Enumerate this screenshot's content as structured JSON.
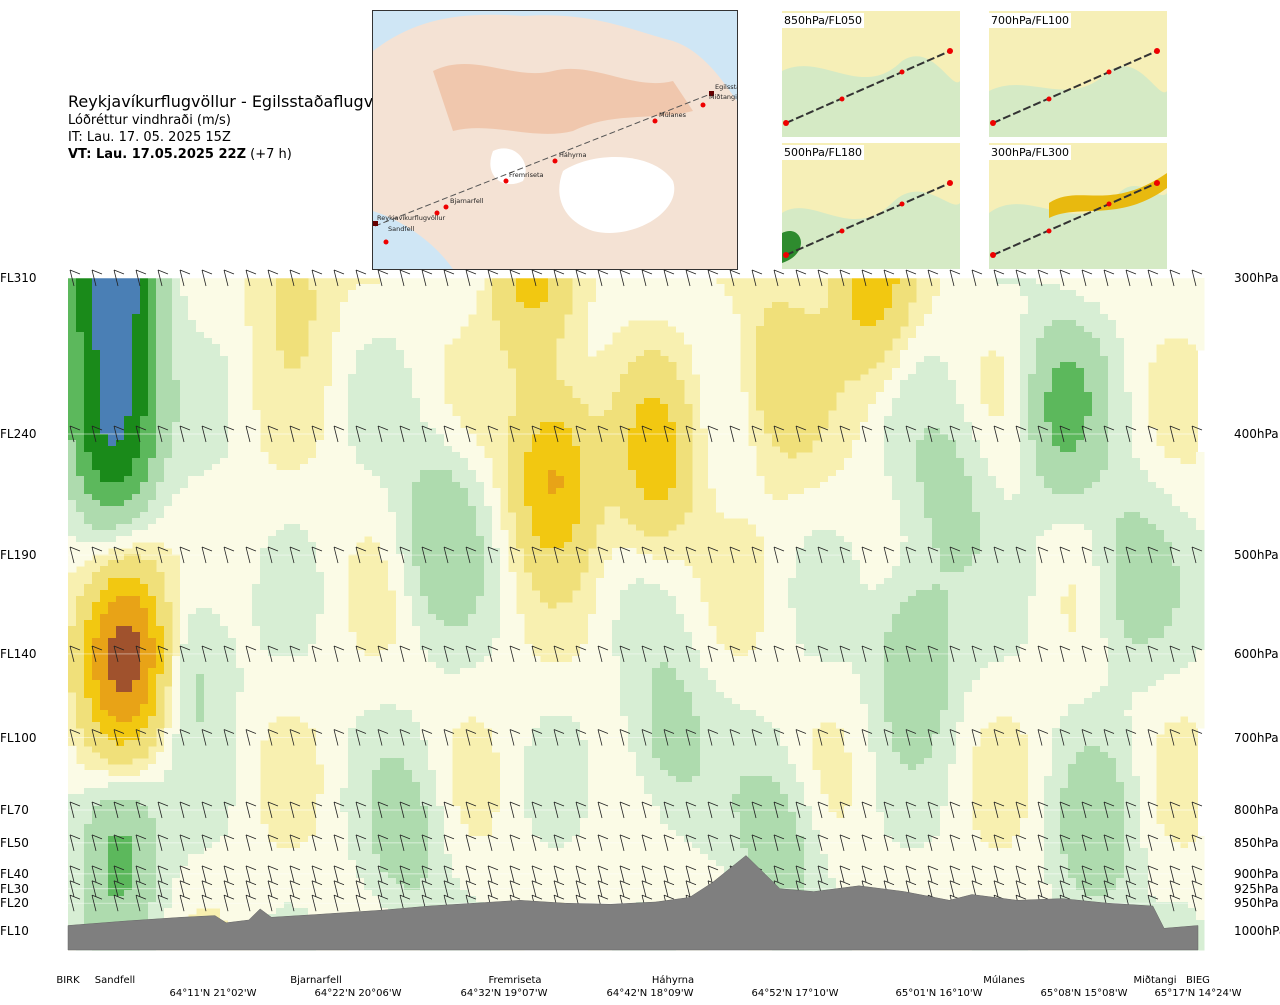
{
  "title": {
    "route": "Reykjavíkurflugvöllur - Egilsstaðaflugvöllur",
    "variable": "Lóðréttur vindhraði (m/s)",
    "init_time": "IT: Lau. 17. 05. 2025 15Z",
    "valid_time_bold": "VT: Lau. 17.05.2025 22Z",
    "valid_time_offset": " (+7 h)"
  },
  "map": {
    "points": [
      "Reykjavíkurflugvöllur",
      "Sandfell",
      "Bjarnarfell",
      "Fremriseta",
      "Háhyrna",
      "Múlanes",
      "Egilsstaðir",
      "Miðtangi"
    ]
  },
  "level_maps": [
    {
      "label": "850hPa/FL050"
    },
    {
      "label": "700hPa/FL100"
    },
    {
      "label": "500hPa/FL180"
    },
    {
      "label": "300hPa/FL300"
    }
  ],
  "colors": {
    "strong_down": "#a0522d",
    "down_2": "#e8a317",
    "down_1": "#f2c811",
    "down_0": "#f0e07a",
    "weak_down": "#f8f0b0",
    "neutral": "#fbfbe6",
    "weak_up": "#d7eed4",
    "up_1": "#aedbae",
    "up_2": "#5cb85c",
    "up_3": "#1a8a1a",
    "strong_up": "#4a7fb5",
    "terrain": "#7f7f7f"
  },
  "chart_data": {
    "type": "heatmap",
    "title": "Lóðréttur vindhraði (m/s)",
    "flight_levels": [
      "FL310",
      "FL240",
      "FL190",
      "FL140",
      "FL100",
      "FL70",
      "FL50",
      "FL40",
      "FL30",
      "FL20",
      "FL10"
    ],
    "pressure_levels": [
      "300hPa",
      "400hPa",
      "500hPa",
      "600hPa",
      "700hPa",
      "800hPa",
      "850hPa",
      "900hPa",
      "925hPa",
      "950hPa",
      "1000hPa"
    ],
    "waypoints": [
      "BIRK",
      "Sandfell",
      "Bjarnarfell",
      "Fremriseta",
      "Háhyrna",
      "Múlanes",
      "Miðtangi",
      "BIEG"
    ],
    "coordinates": [
      "64°11'N 21°02'W",
      "64°22'N 20°06'W",
      "64°32'N 19°07'W",
      "64°42'N 18°09'W",
      "64°52'N 17°10'W",
      "65°01'N 16°10'W",
      "65°08'N 15°08'W",
      "65°17'N 14°24'W"
    ],
    "fields": [
      {
        "x": 0.04,
        "p": 390,
        "v": 2.5
      },
      {
        "x": 0.04,
        "p": 300,
        "v": 3.0
      },
      {
        "x": 0.05,
        "p": 600,
        "v": -2.5
      },
      {
        "x": 0.045,
        "p": 860,
        "v": 1.0
      },
      {
        "x": 0.11,
        "p": 600,
        "v": 0.5
      },
      {
        "x": 0.2,
        "p": 300,
        "v": -0.5
      },
      {
        "x": 0.33,
        "p": 480,
        "v": 0.7
      },
      {
        "x": 0.41,
        "p": 300,
        "v": -0.9
      },
      {
        "x": 0.43,
        "p": 430,
        "v": -1.4
      },
      {
        "x": 0.52,
        "p": 420,
        "v": -1.0
      },
      {
        "x": 0.53,
        "p": 700,
        "v": 0.6
      },
      {
        "x": 0.63,
        "p": 360,
        "v": -0.7
      },
      {
        "x": 0.71,
        "p": 300,
        "v": -1.1
      },
      {
        "x": 0.75,
        "p": 600,
        "v": 0.8
      },
      {
        "x": 0.78,
        "p": 450,
        "v": 0.5
      },
      {
        "x": 0.88,
        "p": 380,
        "v": 0.9
      },
      {
        "x": 0.94,
        "p": 520,
        "v": 0.6
      },
      {
        "x": 0.3,
        "p": 850,
        "v": 0.5
      },
      {
        "x": 0.63,
        "p": 860,
        "v": 0.6
      },
      {
        "x": 0.91,
        "p": 850,
        "v": 0.6
      }
    ],
    "ylim_hPa": [
      1000,
      300
    ],
    "xlim_fraction": [
      0,
      1
    ],
    "terrain_hPa": [
      {
        "x": 0.0,
        "p": 990
      },
      {
        "x": 0.05,
        "p": 982
      },
      {
        "x": 0.1,
        "p": 975
      },
      {
        "x": 0.13,
        "p": 972
      },
      {
        "x": 0.14,
        "p": 985
      },
      {
        "x": 0.16,
        "p": 980
      },
      {
        "x": 0.17,
        "p": 960
      },
      {
        "x": 0.18,
        "p": 975
      },
      {
        "x": 0.22,
        "p": 970
      },
      {
        "x": 0.28,
        "p": 962
      },
      {
        "x": 0.32,
        "p": 955
      },
      {
        "x": 0.36,
        "p": 950
      },
      {
        "x": 0.4,
        "p": 945
      },
      {
        "x": 0.44,
        "p": 950
      },
      {
        "x": 0.48,
        "p": 952
      },
      {
        "x": 0.52,
        "p": 948
      },
      {
        "x": 0.55,
        "p": 940
      },
      {
        "x": 0.57,
        "p": 915
      },
      {
        "x": 0.6,
        "p": 870
      },
      {
        "x": 0.63,
        "p": 925
      },
      {
        "x": 0.66,
        "p": 930
      },
      {
        "x": 0.7,
        "p": 920
      },
      {
        "x": 0.74,
        "p": 930
      },
      {
        "x": 0.78,
        "p": 945
      },
      {
        "x": 0.8,
        "p": 935
      },
      {
        "x": 0.84,
        "p": 945
      },
      {
        "x": 0.88,
        "p": 942
      },
      {
        "x": 0.92,
        "p": 950
      },
      {
        "x": 0.96,
        "p": 955
      },
      {
        "x": 0.97,
        "p": 995
      },
      {
        "x": 1.0,
        "p": 990
      }
    ]
  }
}
